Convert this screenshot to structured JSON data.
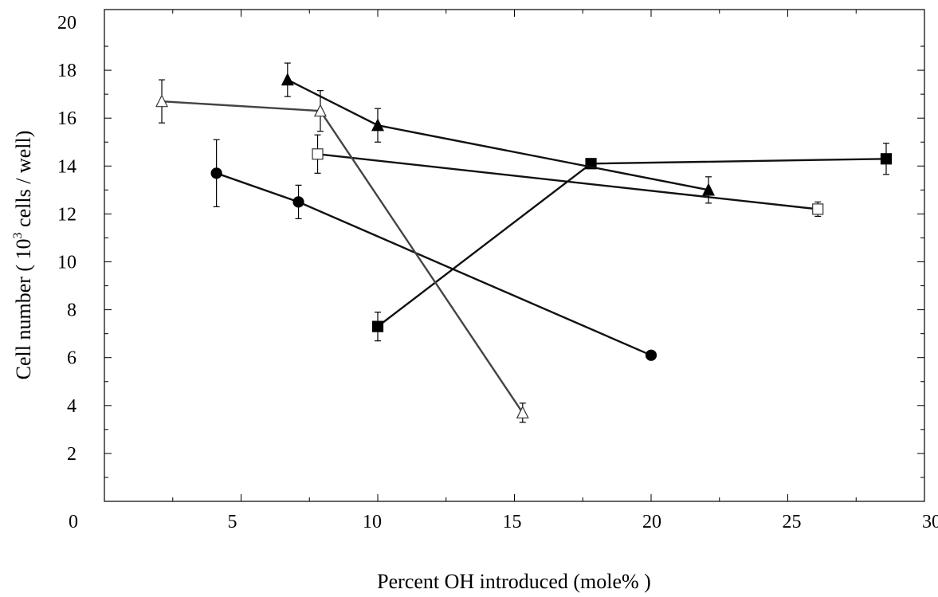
{
  "chart_data": {
    "type": "line",
    "xlabel": "Percent OH introduced (mole% )",
    "ylabel_parts": [
      "Cell number ( 10",
      "3",
      " cells / well)"
    ],
    "xlim": [
      0,
      30
    ],
    "ylim": [
      0,
      20
    ],
    "x_ticks": [
      {
        "value": 0,
        "label": "0"
      },
      {
        "value": 5,
        "label": "5"
      },
      {
        "value": 10,
        "label": "10"
      },
      {
        "value": 15,
        "label": "15"
      },
      {
        "value": 20,
        "label": "20"
      },
      {
        "value": 25,
        "label": "25"
      },
      {
        "value": 30,
        "label": "30"
      }
    ],
    "y_ticks": [
      {
        "value": 2,
        "label": "2"
      },
      {
        "value": 4,
        "label": "4"
      },
      {
        "value": 6,
        "label": "6"
      },
      {
        "value": 8,
        "label": "8"
      },
      {
        "value": 10,
        "label": "10"
      },
      {
        "value": 12,
        "label": "12"
      },
      {
        "value": 14,
        "label": "14"
      },
      {
        "value": 16,
        "label": "16"
      },
      {
        "value": 18,
        "label": "18"
      },
      {
        "value": 20,
        "label": "20"
      }
    ],
    "grid": false,
    "series": [
      {
        "marker": "circle",
        "filled": true,
        "line_color": "#111111",
        "points": [
          {
            "x": 4.1,
            "y": 13.7,
            "err": 1.4
          },
          {
            "x": 7.1,
            "y": 12.5,
            "err": 0.7
          },
          {
            "x": 20.0,
            "y": 6.1,
            "err": 0.15
          }
        ]
      },
      {
        "marker": "square",
        "filled": true,
        "line_color": "#111111",
        "points": [
          {
            "x": 10.0,
            "y": 7.3,
            "err": 0.6
          },
          {
            "x": 17.8,
            "y": 14.1,
            "err": 0.15
          },
          {
            "x": 28.6,
            "y": 14.3,
            "err": 0.65
          }
        ]
      },
      {
        "marker": "square",
        "filled": false,
        "line_color": "#111111",
        "points": [
          {
            "x": 7.8,
            "y": 14.5,
            "err": 0.8
          },
          {
            "x": 26.1,
            "y": 12.2,
            "err": 0.3
          }
        ]
      },
      {
        "marker": "triangle",
        "filled": true,
        "line_color": "#111111",
        "points": [
          {
            "x": 6.7,
            "y": 17.6,
            "err": 0.7
          },
          {
            "x": 10.0,
            "y": 15.7,
            "err": 0.7
          },
          {
            "x": 22.1,
            "y": 13.0,
            "err": 0.55
          }
        ]
      },
      {
        "marker": "triangle",
        "filled": false,
        "line_color": "#444444",
        "points": [
          {
            "x": 2.1,
            "y": 16.7,
            "err": 0.9
          },
          {
            "x": 7.9,
            "y": 16.3,
            "err": 0.85
          },
          {
            "x": 15.3,
            "y": 3.7,
            "err": 0.4
          }
        ]
      }
    ]
  }
}
